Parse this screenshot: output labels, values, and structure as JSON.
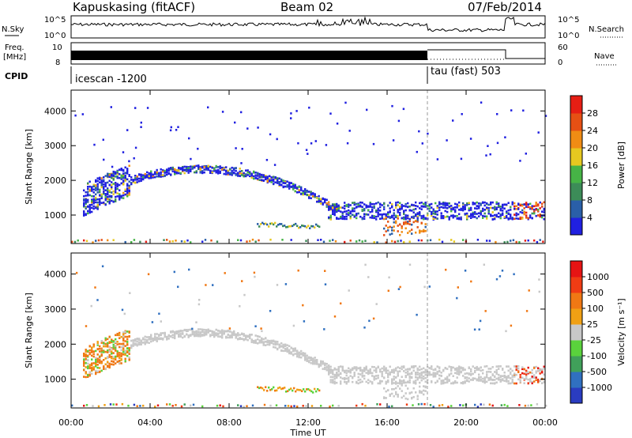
{
  "header": {
    "station": "Kapuskasing (fitACF)",
    "beam": "Beam 02",
    "date": "07/Feb/2014"
  },
  "panels": {
    "nsky_label": "N.Sky",
    "nsky_ticks": [
      "10^5",
      "10^0"
    ],
    "nsearch_label": "N.Search",
    "nsearch_ticks": [
      "10^5",
      "10^0"
    ],
    "freq_label_1": "Freq.",
    "freq_label_2": "[MHz]",
    "freq_ticks": [
      "10",
      "8"
    ],
    "nave_label": "Nave",
    "nave_ticks": [
      "60",
      "0"
    ],
    "cpid_label": "CPID",
    "cpid_1": "icescan -1200",
    "cpid_2": "tau (fast) 503"
  },
  "colors": {
    "power_scale": [
      "#2020e0",
      "#2a5fa8",
      "#3c8c58",
      "#46b446",
      "#e6c820",
      "#f08c14",
      "#e65014",
      "#e61e14"
    ],
    "velocity_scale": [
      "#2a3cc0",
      "#3070c0",
      "#40a05a",
      "#5ad23c",
      "#c8c8c8",
      "#f0a014",
      "#f07814",
      "#f03c14",
      "#e61414"
    ]
  },
  "chart_data": [
    {
      "type": "heatmap",
      "quantity": "Power",
      "ylabel": "Slant Range [km]",
      "yticks": [
        "4000",
        "3000",
        "2000",
        "1000"
      ],
      "ylim": [
        180,
        4600
      ],
      "xlim": [
        0,
        24
      ],
      "colorbar_label": "Power [dB]",
      "colorbar_ticks": [
        "28",
        "24",
        "20",
        "16",
        "12",
        "8",
        "4"
      ],
      "clim": [
        0,
        32
      ]
    },
    {
      "type": "heatmap",
      "quantity": "Velocity",
      "ylabel": "Slant Range [km]",
      "yticks": [
        "4000",
        "3000",
        "2000",
        "1000"
      ],
      "ylim": [
        180,
        4600
      ],
      "xlim": [
        0,
        24
      ],
      "colorbar_label": "Velocity [m s⁻¹]",
      "colorbar_ticks": [
        "1000",
        "500",
        "100",
        "25",
        "-25",
        "-100",
        "-500",
        "-1000"
      ]
    }
  ],
  "xaxis": {
    "xlabel": "Time UT",
    "ticks": [
      "00:00",
      "04:00",
      "08:00",
      "12:00",
      "16:00",
      "20:00",
      "00:00"
    ]
  }
}
